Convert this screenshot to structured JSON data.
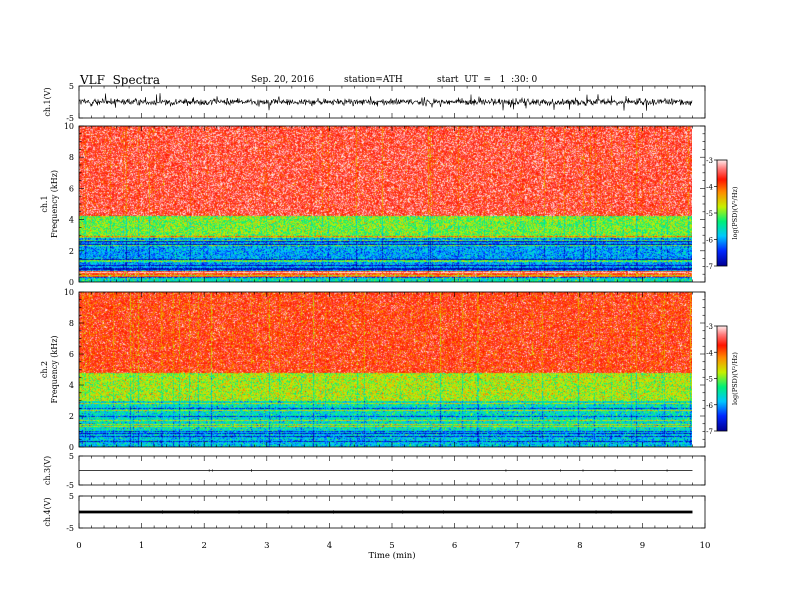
{
  "header": {
    "title": "VLF  Spectra",
    "date": "Sep. 20, 2016",
    "station": "station=ATH",
    "start": "start  UT  =   1  :30: 0"
  },
  "chart_data": [
    {
      "panel": "ch1-waveform",
      "type": "line",
      "ylabel": "ch.1(V)",
      "ylim": [
        -5,
        5
      ],
      "xlim": [
        0,
        10
      ],
      "yticks": [
        "5",
        "-5"
      ],
      "signal": {
        "mean": 0,
        "amplitude_typical": 1.4,
        "amplitude_peak": 2.8,
        "x_end": 9.8
      }
    },
    {
      "panel": "ch1-spectrogram",
      "type": "heatmap",
      "ylabel": "ch.1\nFrequency  (kHz)",
      "ylim": [
        0,
        10
      ],
      "xlim": [
        0,
        10
      ],
      "x_end": 9.8,
      "yticks": [
        "0",
        "2",
        "4",
        "6",
        "8",
        "10"
      ],
      "colorbar": {
        "label": "log(PSD)(V²/Hz)",
        "range": [
          -7,
          -3
        ],
        "ticks": [
          "-3",
          "-4",
          "-5",
          "-6",
          "-7"
        ]
      },
      "bands": [
        {
          "f_from": 0,
          "f_to": 0.35,
          "log_psd": -5.5
        },
        {
          "f_from": 0.35,
          "f_to": 0.7,
          "log_psd": -3.8
        },
        {
          "f_from": 0.7,
          "f_to": 2.8,
          "log_psd": -6.0
        },
        {
          "f_from": 2.8,
          "f_to": 4.2,
          "log_psd": -5.0
        },
        {
          "f_from": 4.2,
          "f_to": 10,
          "log_psd": -3.5
        }
      ]
    },
    {
      "panel": "ch2-spectrogram",
      "type": "heatmap",
      "ylabel": "ch.2\nFrequency  (kHz)",
      "ylim": [
        0,
        10
      ],
      "xlim": [
        0,
        10
      ],
      "x_end": 9.8,
      "yticks": [
        "0",
        "2",
        "4",
        "6",
        "8",
        "10"
      ],
      "colorbar": {
        "label": "log(PSD)(V²/Hz)",
        "range": [
          -7,
          -3
        ],
        "ticks": [
          "-3",
          "-4",
          "-5",
          "-6",
          "-7"
        ]
      },
      "bands": [
        {
          "f_from": 0,
          "f_to": 1.0,
          "log_psd": -5.8
        },
        {
          "f_from": 1.0,
          "f_to": 3.0,
          "log_psd": -5.6
        },
        {
          "f_from": 3.0,
          "f_to": 4.8,
          "log_psd": -4.8
        },
        {
          "f_from": 4.8,
          "f_to": 10,
          "log_psd": -3.7
        }
      ]
    },
    {
      "panel": "ch3-waveform",
      "type": "line",
      "ylabel": "ch.3(V)",
      "ylim": [
        -5,
        5
      ],
      "xlim": [
        0,
        10
      ],
      "yticks": [
        "5",
        "-5"
      ],
      "signal": {
        "mean": 0,
        "amplitude_typical": 0.05,
        "amplitude_peak": 0.1,
        "x_end": 9.8
      }
    },
    {
      "panel": "ch4-waveform",
      "type": "line",
      "ylabel": "ch.4(V)",
      "ylim": [
        -5,
        5
      ],
      "xlim": [
        0,
        10
      ],
      "yticks": [
        "5",
        "-5"
      ],
      "signal": {
        "mean": 0,
        "amplitude_typical": 0.2,
        "amplitude_peak": 0.25,
        "x_end": 9.8
      }
    }
  ],
  "xaxis": {
    "label": "Time  (min)",
    "ticks": [
      "0",
      "1",
      "2",
      "3",
      "4",
      "5",
      "6",
      "7",
      "8",
      "9",
      "10"
    ]
  }
}
